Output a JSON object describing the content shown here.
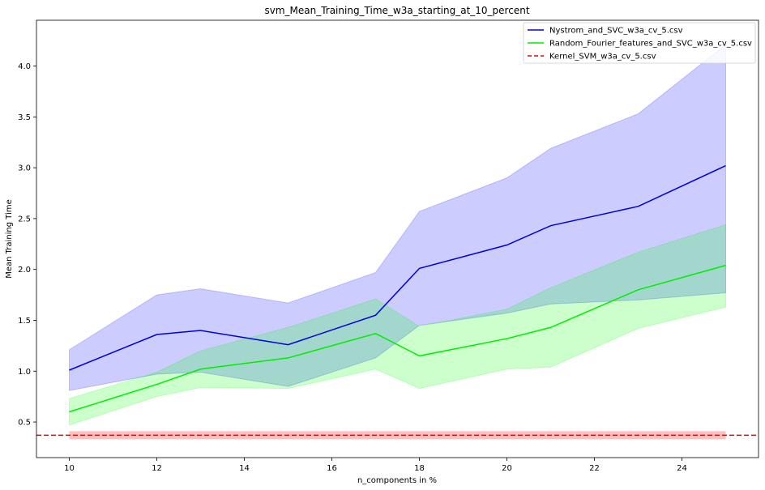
{
  "chart_data": {
    "type": "line",
    "title": "svm_Mean_Training_Time_w3a_starting_at_10_percent",
    "xlabel": "n_components in %",
    "ylabel": "Mean Training Time",
    "xlim": [
      9.25,
      25.75
    ],
    "ylim": [
      0.15,
      4.45
    ],
    "xticks": [
      10,
      12,
      14,
      16,
      18,
      20,
      22,
      24
    ],
    "xtick_labels": [
      "10",
      "12",
      "14",
      "16",
      "18",
      "20",
      "22",
      "24"
    ],
    "yticks": [
      0.5,
      1.0,
      1.5,
      2.0,
      2.5,
      3.0,
      3.5,
      4.0
    ],
    "ytick_labels": [
      "0.5",
      "1.0",
      "1.5",
      "2.0",
      "2.5",
      "3.0",
      "3.5",
      "4.0"
    ],
    "grid": false,
    "legend_position": "top-right",
    "series": [
      {
        "name": "Nystrom_and_SVC_w3a_cv_5.csv",
        "color": "#0000dd",
        "band_color": "#0000ff",
        "band_opacity": 0.2,
        "x": [
          10,
          12,
          13,
          15,
          17,
          18,
          20,
          21,
          23,
          25
        ],
        "values": [
          1.01,
          1.36,
          1.4,
          1.26,
          1.55,
          2.01,
          2.24,
          2.43,
          2.62,
          3.02
        ],
        "lower": [
          0.81,
          0.97,
          0.99,
          0.85,
          1.13,
          1.45,
          1.57,
          1.66,
          1.7,
          1.77
        ],
        "upper": [
          1.21,
          1.75,
          1.81,
          1.67,
          1.97,
          2.57,
          2.9,
          3.19,
          3.53,
          4.21
        ]
      },
      {
        "name": "Random_Fourier_features_and_SVC_w3a_cv_5.csv",
        "color": "#00ee00",
        "band_color": "#00ff00",
        "band_opacity": 0.2,
        "x": [
          10,
          12,
          13,
          15,
          17,
          18,
          20,
          21,
          23,
          25
        ],
        "values": [
          0.6,
          0.87,
          1.02,
          1.13,
          1.37,
          1.15,
          1.32,
          1.43,
          1.8,
          2.04
        ],
        "lower": [
          0.47,
          0.75,
          0.84,
          0.83,
          1.02,
          0.83,
          1.02,
          1.04,
          1.42,
          1.63
        ],
        "upper": [
          0.73,
          0.99,
          1.2,
          1.43,
          1.71,
          1.44,
          1.61,
          1.82,
          2.17,
          2.44
        ]
      }
    ],
    "reference_lines": [
      {
        "name": "Kernel_SVM_w3a_cv_5.csv",
        "color": "#ee0000",
        "style": "dashed",
        "value": 0.37,
        "band_lower": 0.33,
        "band_upper": 0.41,
        "band_color": "#ff0000",
        "band_opacity": 0.25,
        "band_x": [
          10,
          25
        ]
      }
    ]
  }
}
